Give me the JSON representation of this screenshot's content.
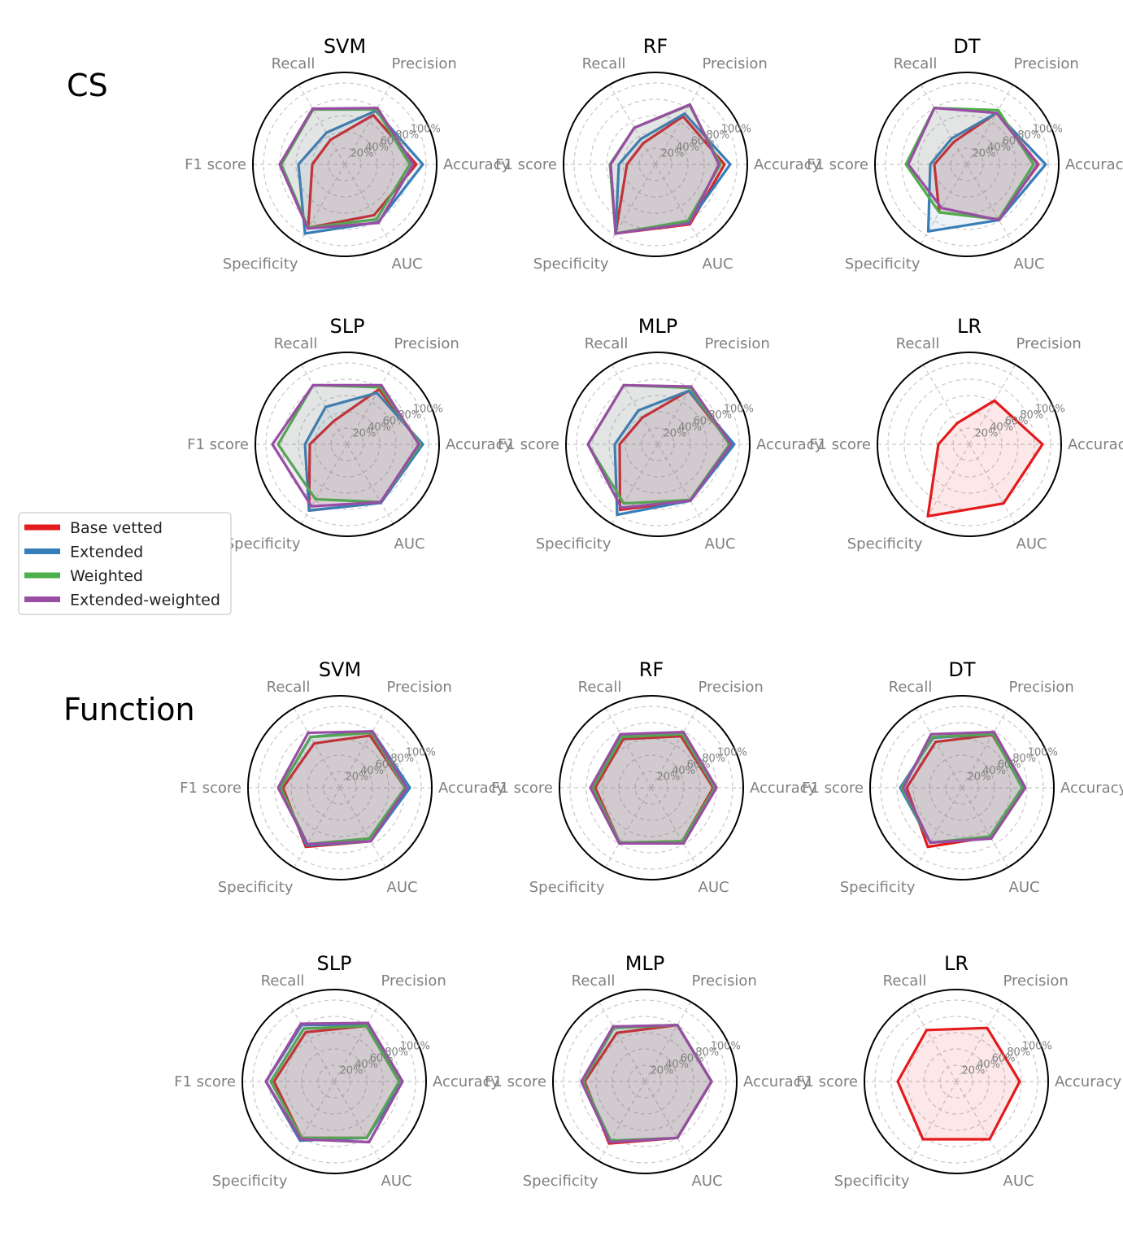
{
  "sections": [
    {
      "label": "CS",
      "key": "cs"
    },
    {
      "label": "Function",
      "key": "function"
    }
  ],
  "legend": [
    {
      "label": "Base vetted",
      "color": "#e41a1c"
    },
    {
      "label": "Extended",
      "color": "#377eb8"
    },
    {
      "label": "Weighted",
      "color": "#4daf4a"
    },
    {
      "label": "Extended-weighted",
      "color": "#984ea3"
    }
  ],
  "chart_data": [
    {
      "type": "radar",
      "section": "CS",
      "title": "SVM",
      "axes": [
        "Accuracy",
        "Precision",
        "Recall",
        "F1 score",
        "Specificity",
        "AUC"
      ],
      "ticks": [
        "20%",
        "40%",
        "60%",
        "80%",
        "100%"
      ],
      "rmax": 100,
      "series": [
        {
          "name": "Base vetted",
          "values": [
            88,
            70,
            35,
            40,
            90,
            72
          ]
        },
        {
          "name": "Extended",
          "values": [
            96,
            76,
            45,
            57,
            98,
            82
          ]
        },
        {
          "name": "Weighted",
          "values": [
            80,
            78,
            78,
            78,
            90,
            78
          ]
        },
        {
          "name": "Extended-weighted",
          "values": [
            84,
            80,
            79,
            80,
            91,
            83
          ]
        }
      ]
    },
    {
      "type": "radar",
      "section": "CS",
      "title": "RF",
      "axes": [
        "Accuracy",
        "Precision",
        "Recall",
        "F1 score",
        "Specificity",
        "AUC"
      ],
      "ticks": [
        "20%",
        "40%",
        "60%",
        "80%",
        "100%"
      ],
      "rmax": 100,
      "series": [
        {
          "name": "Base vetted",
          "values": [
            85,
            68,
            30,
            35,
            98,
            85
          ]
        },
        {
          "name": "Extended",
          "values": [
            92,
            72,
            36,
            45,
            98,
            82
          ]
        },
        {
          "name": "Weighted",
          "values": [
            80,
            84,
            52,
            56,
            98,
            80
          ]
        },
        {
          "name": "Extended-weighted",
          "values": [
            78,
            85,
            52,
            55,
            98,
            84
          ]
        }
      ]
    },
    {
      "type": "radar",
      "section": "CS",
      "title": "DT",
      "axes": [
        "Accuracy",
        "Precision",
        "Recall",
        "F1 score",
        "Specificity",
        "AUC"
      ],
      "ticks": [
        "20%",
        "40%",
        "60%",
        "80%",
        "100%"
      ],
      "rmax": 100,
      "series": [
        {
          "name": "Base vetted",
          "values": [
            88,
            73,
            32,
            40,
            68,
            78
          ]
        },
        {
          "name": "Extended",
          "values": [
            97,
            73,
            37,
            45,
            95,
            79
          ]
        },
        {
          "name": "Weighted",
          "values": [
            82,
            77,
            80,
            75,
            68,
            78
          ]
        },
        {
          "name": "Extended-weighted",
          "values": [
            87,
            73,
            80,
            72,
            62,
            79
          ]
        }
      ]
    },
    {
      "type": "radar",
      "section": "CS",
      "title": "SLP",
      "axes": [
        "Accuracy",
        "Precision",
        "Recall",
        "F1 score",
        "Specificity",
        "AUC"
      ],
      "ticks": [
        "20%",
        "40%",
        "60%",
        "80%",
        "100%"
      ],
      "rmax": 100,
      "series": [
        {
          "name": "Base vetted",
          "values": [
            90,
            78,
            33,
            46,
            94,
            83
          ]
        },
        {
          "name": "Extended",
          "values": [
            93,
            73,
            53,
            52,
            94,
            83
          ]
        },
        {
          "name": "Weighted",
          "values": [
            90,
            81,
            84,
            85,
            78,
            82
          ]
        },
        {
          "name": "Extended-weighted",
          "values": [
            88,
            84,
            84,
            92,
            88,
            82
          ]
        }
      ]
    },
    {
      "type": "radar",
      "section": "CS",
      "title": "MLP",
      "axes": [
        "Accuracy",
        "Precision",
        "Recall",
        "F1 score",
        "Specificity",
        "AUC"
      ],
      "ticks": [
        "20%",
        "40%",
        "60%",
        "80%",
        "100%"
      ],
      "rmax": 100,
      "series": [
        {
          "name": "Base vetted",
          "values": [
            90,
            76,
            38,
            47,
            93,
            80
          ]
        },
        {
          "name": "Extended",
          "values": [
            94,
            76,
            48,
            53,
            100,
            80
          ]
        },
        {
          "name": "Weighted",
          "values": [
            88,
            80,
            84,
            86,
            84,
            79
          ]
        },
        {
          "name": "Extended-weighted",
          "values": [
            90,
            82,
            84,
            86,
            90,
            80
          ]
        }
      ]
    },
    {
      "type": "radar",
      "section": "CS",
      "title": "LR",
      "axes": [
        "Accuracy",
        "Precision",
        "Recall",
        "F1 score",
        "Specificity",
        "AUC"
      ],
      "ticks": [
        "20%",
        "40%",
        "60%",
        "80%",
        "100%"
      ],
      "rmax": 100,
      "series": [
        {
          "name": "Base vetted",
          "values": [
            90,
            62,
            30,
            38,
            102,
            84
          ]
        }
      ]
    },
    {
      "type": "radar",
      "section": "Function",
      "title": "SVM",
      "axes": [
        "Accuracy",
        "Precision",
        "Recall",
        "F1 score",
        "Specificity",
        "AUC"
      ],
      "ticks": [
        "20%",
        "40%",
        "60%",
        "80%",
        "100%"
      ],
      "rmax": 100,
      "series": [
        {
          "name": "Base vetted",
          "values": [
            80,
            74,
            63,
            70,
            84,
            76
          ]
        },
        {
          "name": "Extended",
          "values": [
            86,
            80,
            72,
            73,
            82,
            76
          ]
        },
        {
          "name": "Weighted",
          "values": [
            80,
            78,
            72,
            73,
            80,
            72
          ]
        },
        {
          "name": "Extended-weighted",
          "values": [
            82,
            80,
            78,
            76,
            80,
            76
          ]
        }
      ]
    },
    {
      "type": "radar",
      "section": "Function",
      "title": "RF",
      "axes": [
        "Accuracy",
        "Precision",
        "Recall",
        "F1 score",
        "Specificity",
        "AUC"
      ],
      "ticks": [
        "20%",
        "40%",
        "60%",
        "80%",
        "100%"
      ],
      "rmax": 100,
      "series": [
        {
          "name": "Base vetted",
          "values": [
            76,
            73,
            69,
            69,
            78,
            76
          ]
        },
        {
          "name": "Extended",
          "values": [
            80,
            77,
            73,
            74,
            78,
            78
          ]
        },
        {
          "name": "Weighted",
          "values": [
            78,
            76,
            72,
            72,
            78,
            76
          ]
        },
        {
          "name": "Extended-weighted",
          "values": [
            80,
            79,
            76,
            75,
            79,
            79
          ]
        }
      ]
    },
    {
      "type": "radar",
      "section": "Function",
      "title": "DT",
      "axes": [
        "Accuracy",
        "Precision",
        "Recall",
        "F1 score",
        "Specificity",
        "AUC"
      ],
      "ticks": [
        "20%",
        "40%",
        "60%",
        "80%",
        "100%"
      ],
      "rmax": 100,
      "series": [
        {
          "name": "Base vetted",
          "values": [
            76,
            75,
            65,
            68,
            84,
            70
          ]
        },
        {
          "name": "Extended",
          "values": [
            76,
            76,
            71,
            76,
            78,
            72
          ]
        },
        {
          "name": "Weighted",
          "values": [
            74,
            76,
            72,
            74,
            78,
            69
          ]
        },
        {
          "name": "Extended-weighted",
          "values": [
            78,
            79,
            76,
            72,
            78,
            72
          ]
        }
      ]
    },
    {
      "type": "radar",
      "section": "Function",
      "title": "SLP",
      "axes": [
        "Accuracy",
        "Precision",
        "Recall",
        "F1 score",
        "Specificity",
        "AUC"
      ],
      "ticks": [
        "20%",
        "40%",
        "60%",
        "80%",
        "100%"
      ],
      "rmax": 100,
      "series": [
        {
          "name": "Base vetted",
          "values": [
            80,
            79,
            70,
            74,
            80,
            80
          ]
        },
        {
          "name": "Extended",
          "values": [
            84,
            81,
            80,
            84,
            84,
            80
          ]
        },
        {
          "name": "Weighted",
          "values": [
            80,
            79,
            75,
            78,
            80,
            80
          ]
        },
        {
          "name": "Extended-weighted",
          "values": [
            84,
            83,
            82,
            84,
            82,
            86
          ]
        }
      ]
    },
    {
      "type": "radar",
      "section": "Function",
      "title": "MLP",
      "axes": [
        "Accuracy",
        "Precision",
        "Recall",
        "F1 score",
        "Specificity",
        "AUC"
      ],
      "ticks": [
        "20%",
        "40%",
        "60%",
        "80%",
        "100%"
      ],
      "rmax": 100,
      "series": [
        {
          "name": "Base vetted",
          "values": [
            82,
            80,
            69,
            74,
            88,
            80
          ]
        },
        {
          "name": "Extended",
          "values": [
            82,
            80,
            78,
            78,
            86,
            80
          ]
        },
        {
          "name": "Weighted",
          "values": [
            82,
            80,
            76,
            76,
            84,
            80
          ]
        },
        {
          "name": "Extended-weighted",
          "values": [
            82,
            80,
            78,
            78,
            86,
            80
          ]
        }
      ]
    },
    {
      "type": "radar",
      "section": "Function",
      "title": "LR",
      "axes": [
        "Accuracy",
        "Precision",
        "Recall",
        "F1 score",
        "Specificity",
        "AUC"
      ],
      "ticks": [
        "20%",
        "40%",
        "60%",
        "80%",
        "100%"
      ],
      "rmax": 100,
      "series": [
        {
          "name": "Base vetted",
          "values": [
            78,
            76,
            73,
            72,
            82,
            82
          ]
        }
      ]
    }
  ]
}
